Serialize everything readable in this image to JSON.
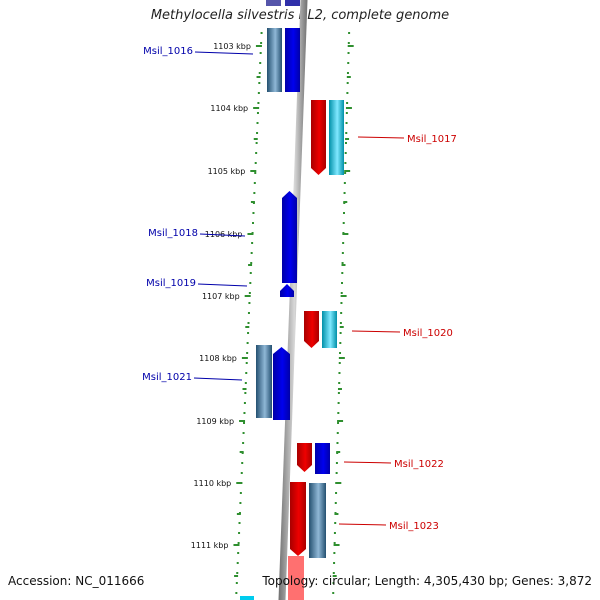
{
  "title": "Methylocella silvestris BL2, complete genome",
  "footer": {
    "accession_label": "Accession:",
    "accession": "NC_011666",
    "topology_label": "Topology:",
    "topology": "circular",
    "length_label": "Length:",
    "length": "4,305,430 bp",
    "genes_label": "Genes:",
    "genes": "3,872"
  },
  "colors": {
    "backbone": "#8a8a8a",
    "ticks": "#2f8f2f",
    "left_labels": "#0000aa",
    "right_labels": "#cc0000",
    "kbp_labels": "#111111",
    "forward_cds": "#0000ee",
    "forward_gene": "#3a78b0",
    "reverse_cds": "#ee0000",
    "reverse_gene": "#00ccee"
  },
  "kbp_labels": [
    "1103 kbp",
    "1104 kbp",
    "1105 kbp",
    "1106 kbp",
    "1107 kbp",
    "1108 kbp",
    "1109 kbp",
    "1110 kbp",
    "1111 kbp"
  ],
  "genes_left": [
    "Msil_1016",
    "Msil_1018",
    "Msil_1019",
    "Msil_1021"
  ],
  "genes_right": [
    "Msil_1017",
    "Msil_1020",
    "Msil_1022",
    "Msil_1023"
  ]
}
